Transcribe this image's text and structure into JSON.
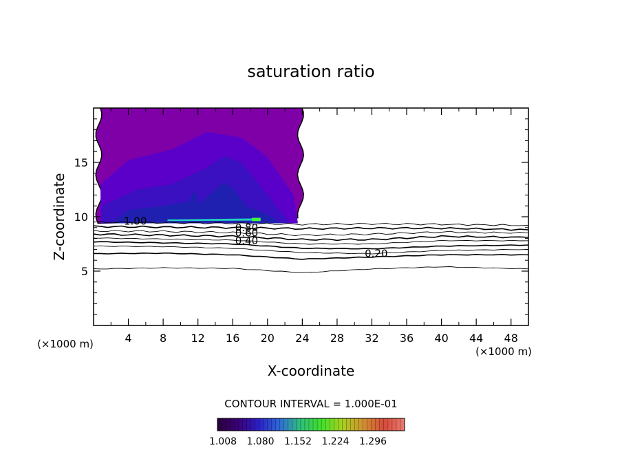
{
  "chart_data": {
    "type": "contour",
    "title": "saturation ratio",
    "xlabel": "X-coordinate",
    "ylabel": "Z-coordinate",
    "x_unit_left": "(×1000 m)",
    "x_unit_right": "(×1000 m)",
    "xlim": [
      0,
      50
    ],
    "ylim": [
      0,
      20
    ],
    "x_ticks": [
      4,
      8,
      12,
      16,
      20,
      24,
      28,
      32,
      36,
      40,
      44,
      48
    ],
    "y_ticks": [
      5,
      10,
      15
    ],
    "contour_interval_text": "CONTOUR INTERVAL = 1.000E-01",
    "contour_labels": [
      {
        "text": "1.00",
        "x": 4.8,
        "y": 9.6
      },
      {
        "text": "0.80",
        "x": 17.6,
        "y": 9.0
      },
      {
        "text": "0.60",
        "x": 17.6,
        "y": 8.5
      },
      {
        "text": "0.40",
        "x": 17.6,
        "y": 7.8
      },
      {
        "text": "0.20",
        "x": 32.5,
        "y": 6.6
      }
    ],
    "contour_lines": [
      {
        "level": 0.9,
        "points": [
          [
            0,
            9.5
          ],
          [
            8,
            9.45
          ],
          [
            16,
            9.4
          ],
          [
            24,
            9.3
          ],
          [
            32,
            9.35
          ],
          [
            40,
            9.3
          ],
          [
            50,
            9.2
          ]
        ]
      },
      {
        "level": 0.8,
        "points": [
          [
            0,
            9.1
          ],
          [
            8,
            9.05
          ],
          [
            16,
            9.0
          ],
          [
            24,
            8.9
          ],
          [
            32,
            8.95
          ],
          [
            40,
            8.95
          ],
          [
            50,
            8.8
          ]
        ]
      },
      {
        "level": 0.7,
        "points": [
          [
            0,
            8.7
          ],
          [
            8,
            8.65
          ],
          [
            16,
            8.55
          ],
          [
            24,
            8.3
          ],
          [
            32,
            8.4
          ],
          [
            40,
            8.6
          ],
          [
            50,
            8.5
          ]
        ]
      },
      {
        "level": 0.6,
        "points": [
          [
            0,
            8.4
          ],
          [
            8,
            8.3
          ],
          [
            16,
            8.2
          ],
          [
            24,
            7.9
          ],
          [
            32,
            7.9
          ],
          [
            40,
            8.2
          ],
          [
            50,
            8.1
          ]
        ]
      },
      {
        "level": 0.5,
        "points": [
          [
            0,
            8.05
          ],
          [
            8,
            7.95
          ],
          [
            16,
            7.85
          ],
          [
            24,
            7.5
          ],
          [
            32,
            7.5
          ],
          [
            40,
            7.8
          ],
          [
            50,
            7.8
          ]
        ]
      },
      {
        "level": 0.4,
        "points": [
          [
            0,
            7.7
          ],
          [
            8,
            7.6
          ],
          [
            16,
            7.5
          ],
          [
            24,
            7.1
          ],
          [
            32,
            7.05
          ],
          [
            40,
            7.3
          ],
          [
            50,
            7.4
          ]
        ]
      },
      {
        "level": 0.3,
        "points": [
          [
            0,
            7.3
          ],
          [
            8,
            7.25
          ],
          [
            16,
            7.1
          ],
          [
            24,
            6.7
          ],
          [
            32,
            6.6
          ],
          [
            40,
            6.9
          ],
          [
            50,
            7.0
          ]
        ]
      },
      {
        "level": 0.2,
        "points": [
          [
            0,
            6.6
          ],
          [
            8,
            6.65
          ],
          [
            16,
            6.5
          ],
          [
            24,
            6.1
          ],
          [
            32,
            6.3
          ],
          [
            40,
            6.5
          ],
          [
            50,
            6.5
          ]
        ]
      },
      {
        "level": 0.1,
        "points": [
          [
            0,
            5.2
          ],
          [
            8,
            5.3
          ],
          [
            16,
            5.25
          ],
          [
            24,
            4.85
          ],
          [
            32,
            5.2
          ],
          [
            40,
            5.4
          ],
          [
            50,
            5.2
          ]
        ]
      }
    ],
    "filled_region": {
      "x_range": [
        0.6,
        23.8
      ],
      "z_range": [
        9.4,
        20
      ]
    },
    "colorbar": {
      "tick_labels": [
        "1.008",
        "1.080",
        "1.152",
        "1.224",
        "1.296"
      ],
      "colors": [
        "#2a003a",
        "#3b007a",
        "#2a20c8",
        "#2f6bd8",
        "#2fbf7a",
        "#3fe02a",
        "#a8d020",
        "#d09030",
        "#d84a3a",
        "#e87a70"
      ]
    },
    "colors": {
      "fill_outer": "#8000a8",
      "fill_mid": "#5a00c8",
      "fill_inner": "#3a10c0",
      "fill_core": "#2020b0",
      "band": "#20d0c0"
    }
  }
}
